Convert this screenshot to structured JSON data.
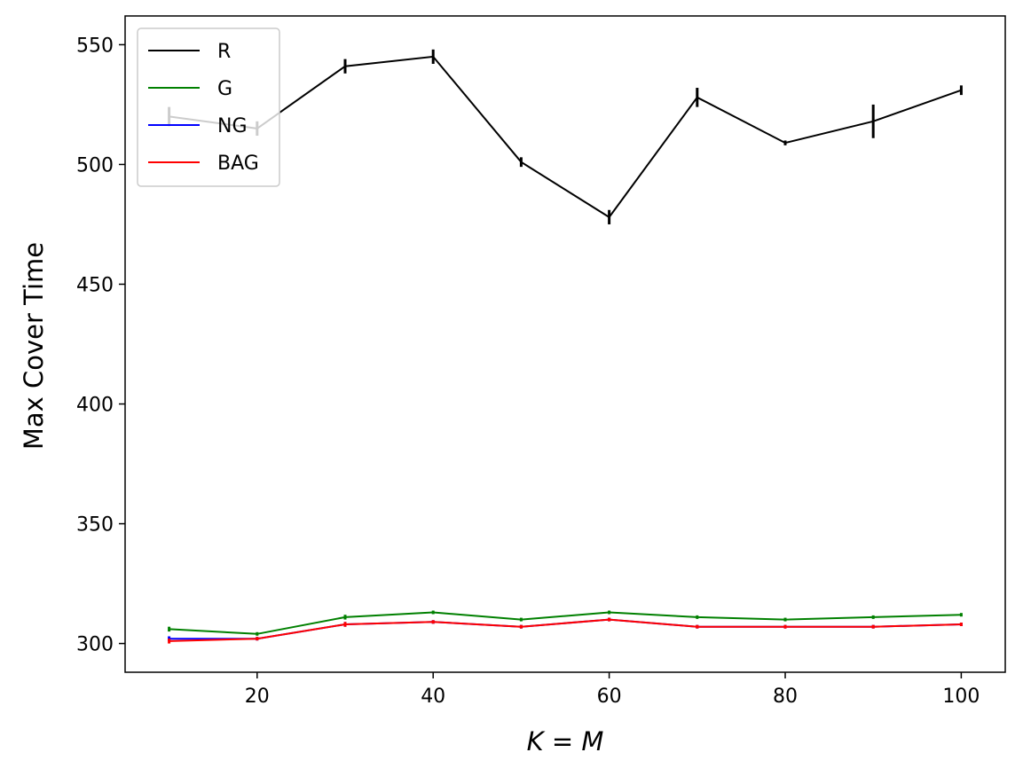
{
  "chart_data": {
    "type": "line",
    "title": "",
    "xlabel": "K = M",
    "ylabel": "Max Cover Time",
    "xlim": [
      5,
      105
    ],
    "ylim": [
      288,
      562
    ],
    "xticks": [
      20,
      40,
      60,
      80,
      100
    ],
    "yticks": [
      300,
      350,
      400,
      450,
      500,
      550
    ],
    "grid": false,
    "legend_position": "top-left",
    "x": [
      10,
      20,
      30,
      40,
      50,
      60,
      70,
      80,
      90,
      100
    ],
    "series": [
      {
        "name": "R",
        "color": "#000000",
        "values": [
          520,
          515,
          541,
          545,
          501,
          478,
          528,
          509,
          518,
          531
        ],
        "errors": [
          4,
          3,
          3,
          3,
          2,
          3,
          4,
          1,
          7,
          2
        ]
      },
      {
        "name": "G",
        "color": "#008000",
        "values": [
          306,
          304,
          311,
          313,
          310,
          313,
          311,
          310,
          311,
          312
        ],
        "errors": [
          1,
          0.5,
          1,
          0.5,
          0.5,
          0.5,
          0.5,
          0.5,
          0.5,
          0.5
        ]
      },
      {
        "name": "NG",
        "color": "#0000ff",
        "values": [
          302,
          302,
          308,
          309,
          307,
          310,
          307,
          307,
          307,
          308
        ],
        "errors": [
          1,
          0.5,
          1,
          0.5,
          0.5,
          0.5,
          0.5,
          0.5,
          0.5,
          0.5
        ]
      },
      {
        "name": "BAG",
        "color": "#ff0000",
        "values": [
          301,
          302,
          308,
          309,
          307,
          310,
          307,
          307,
          307,
          308
        ],
        "errors": [
          1,
          0.5,
          1,
          0.5,
          0.5,
          0.5,
          0.5,
          0.5,
          0.5,
          0.5
        ]
      }
    ]
  }
}
